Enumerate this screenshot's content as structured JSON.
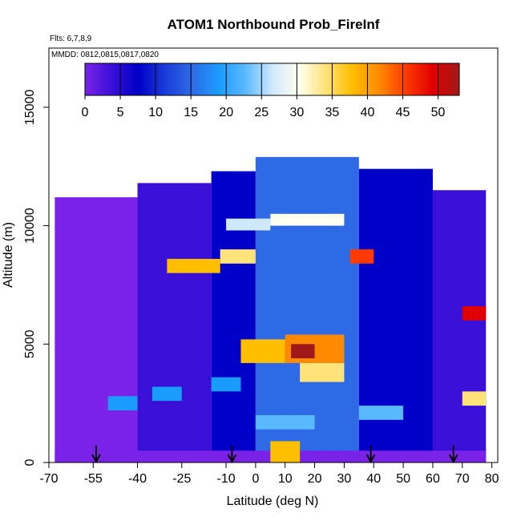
{
  "chart_data": {
    "type": "heatmap",
    "title": "ATOM1 Northbound Prob_FireInf",
    "flights_note": "Flts: 6,7,8,9",
    "dates_note": "MMDD: 0812,0815,0817,0820",
    "xlabel": "Latitude (deg N)",
    "ylabel": "Altitude (m)",
    "xlim": [
      -70,
      82
    ],
    "ylim": [
      0,
      17500
    ],
    "x_ticks": [
      -70,
      -55,
      -40,
      -25,
      -10,
      0,
      10,
      20,
      30,
      40,
      50,
      60,
      70,
      80
    ],
    "x_tick_labels": [
      "-70",
      "-55",
      "-40",
      "-25",
      "-10",
      "0",
      "10",
      "20",
      "30",
      "40",
      "50",
      "60",
      "70",
      "80"
    ],
    "y_ticks": [
      0,
      5000,
      10000,
      15000
    ],
    "y_tick_labels": [
      "0",
      "5000",
      "10000",
      "15000"
    ],
    "colorbar": {
      "range": [
        0,
        53
      ],
      "ticks": [
        0,
        5,
        10,
        15,
        20,
        25,
        30,
        35,
        40,
        45,
        50
      ],
      "tick_labels": [
        "0",
        "5",
        "10",
        "15",
        "20",
        "25",
        "30",
        "35",
        "40",
        "45",
        "50"
      ],
      "colors": [
        "#7B22E8",
        "#3a10d8",
        "#0000c8",
        "#1a3cd8",
        "#2f6ae6",
        "#1a9cff",
        "#5ab8ff",
        "#cfe8ff",
        "#fffff0",
        "#ffe27a",
        "#ffbe00",
        "#ff8a00",
        "#ff3a00",
        "#e00000",
        "#a01818"
      ]
    },
    "profile_markers_lat": [
      -54,
      -8,
      39,
      67
    ],
    "grid": false,
    "value_blocks": [
      {
        "lat": [
          -68,
          -40
        ],
        "alt": [
          0,
          11200
        ],
        "value": 3
      },
      {
        "lat": [
          -40,
          -15
        ],
        "alt": [
          0,
          11800
        ],
        "value": 6
      },
      {
        "lat": [
          -15,
          0
        ],
        "alt": [
          0,
          12300
        ],
        "value": 10
      },
      {
        "lat": [
          0,
          35
        ],
        "alt": [
          0,
          12900
        ],
        "value": 15
      },
      {
        "lat": [
          35,
          60
        ],
        "alt": [
          0,
          12400
        ],
        "value": 10
      },
      {
        "lat": [
          60,
          78
        ],
        "alt": [
          0,
          11500
        ],
        "value": 5
      },
      {
        "lat": [
          -68,
          78
        ],
        "alt": [
          0,
          500
        ],
        "value": 2
      },
      {
        "lat": [
          -30,
          -12
        ],
        "alt": [
          8000,
          8600
        ],
        "value": 36
      },
      {
        "lat": [
          -12,
          0
        ],
        "alt": [
          8400,
          9000
        ],
        "value": 32
      },
      {
        "lat": [
          32,
          40
        ],
        "alt": [
          8400,
          9000
        ],
        "value": 44
      },
      {
        "lat": [
          -10,
          5
        ],
        "alt": [
          9800,
          10300
        ],
        "value": 26
      },
      {
        "lat": [
          5,
          30
        ],
        "alt": [
          10000,
          10500
        ],
        "value": 30
      },
      {
        "lat": [
          -5,
          10
        ],
        "alt": [
          4200,
          5200
        ],
        "value": 38
      },
      {
        "lat": [
          10,
          30
        ],
        "alt": [
          4200,
          5400
        ],
        "value": 42
      },
      {
        "lat": [
          12,
          20
        ],
        "alt": [
          4400,
          5000
        ],
        "value": 50
      },
      {
        "lat": [
          15,
          30
        ],
        "alt": [
          3400,
          4200
        ],
        "value": 33
      },
      {
        "lat": [
          5,
          15
        ],
        "alt": [
          0,
          900
        ],
        "value": 38
      },
      {
        "lat": [
          0,
          20
        ],
        "alt": [
          1400,
          2000
        ],
        "value": 24
      },
      {
        "lat": [
          35,
          50
        ],
        "alt": [
          1800,
          2400
        ],
        "value": 22
      },
      {
        "lat": [
          70,
          78
        ],
        "alt": [
          6000,
          6600
        ],
        "value": 46
      },
      {
        "lat": [
          70,
          78
        ],
        "alt": [
          2400,
          3000
        ],
        "value": 34
      },
      {
        "lat": [
          -50,
          -40
        ],
        "alt": [
          2200,
          2800
        ],
        "value": 20
      },
      {
        "lat": [
          -35,
          -25
        ],
        "alt": [
          2600,
          3200
        ],
        "value": 18
      },
      {
        "lat": [
          -15,
          -5
        ],
        "alt": [
          3000,
          3600
        ],
        "value": 19
      }
    ]
  }
}
